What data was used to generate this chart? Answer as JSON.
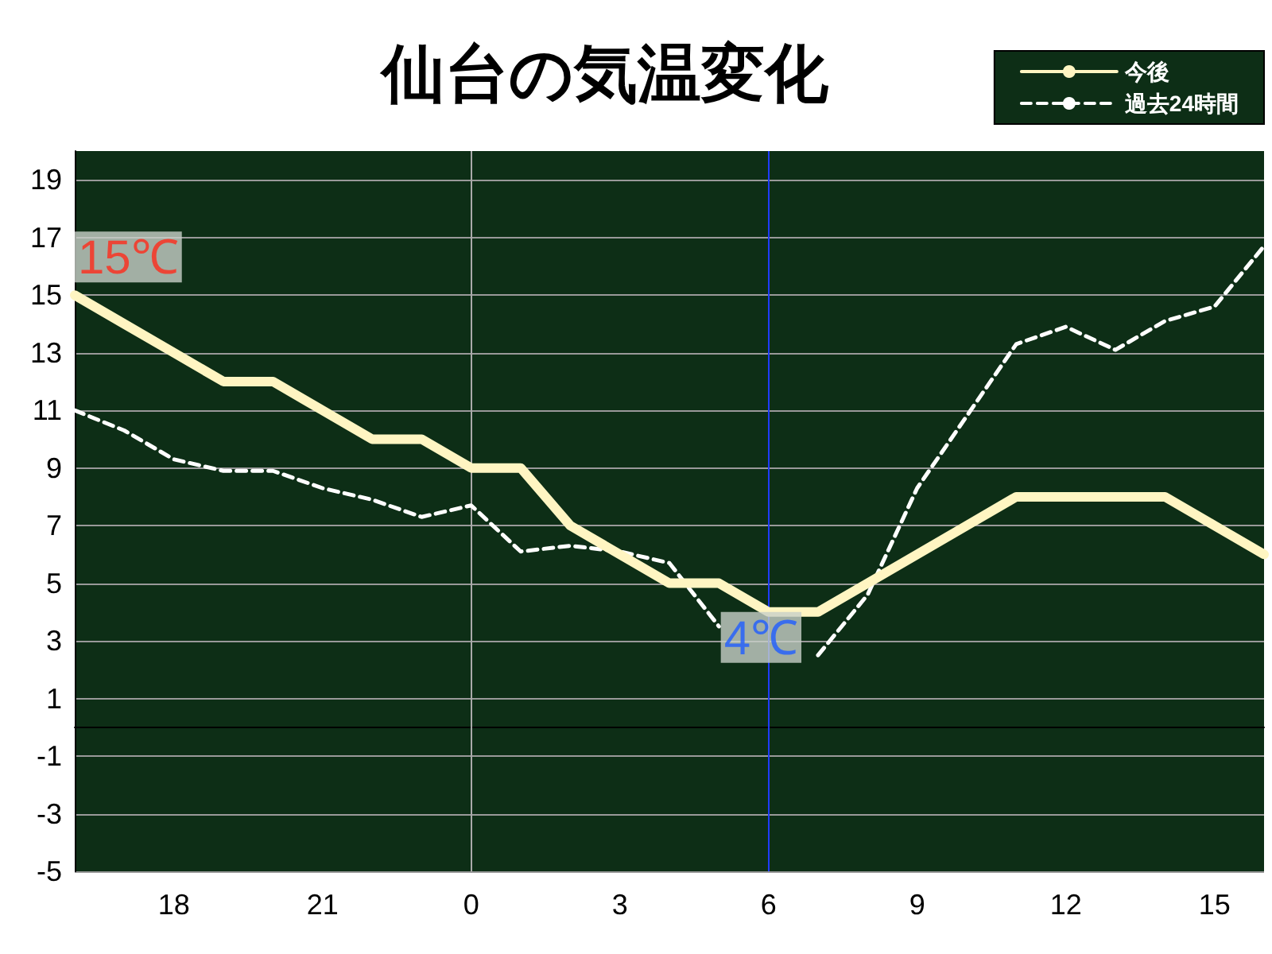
{
  "chart_data": {
    "type": "line",
    "title": "仙台の気温変化",
    "legend": "top right",
    "grid": "y",
    "marker": "none",
    "categories": [
      null,
      null,
      "18",
      null,
      null,
      "21",
      null,
      null,
      "0",
      null,
      null,
      "3",
      null,
      null,
      "6",
      null,
      null,
      "9",
      null,
      null,
      "12",
      null,
      null,
      "15",
      null
    ],
    "ylim": [
      -5,
      20
    ],
    "yticks": [
      -5,
      -3,
      -1,
      1,
      3,
      5,
      7,
      9,
      11,
      13,
      15,
      17,
      19
    ],
    "series": [
      {
        "name": "今後",
        "color": "#fff5c2",
        "line_style": "solid",
        "values": [
          15,
          14,
          13,
          12,
          12,
          11,
          10,
          10,
          9,
          9,
          7,
          6,
          5,
          5,
          4,
          4,
          5,
          6,
          7,
          8,
          8,
          8,
          8,
          7,
          6
        ]
      },
      {
        "name": "過去24時間",
        "color": "#ffffff",
        "line_style": "dashed",
        "values": [
          11,
          10.3,
          9.3,
          8.9,
          8.9,
          8.3,
          7.9,
          7.3,
          7.7,
          6.1,
          6.3,
          6.1,
          5.7,
          3.5,
          null,
          2.5,
          4.6,
          8.3,
          10.8,
          13.3,
          13.9,
          13.1,
          14.1,
          14.6,
          16.7
        ]
      }
    ],
    "ref_lines": [
      {
        "axis": "x",
        "value": "0",
        "color": "#aaaaaa"
      },
      {
        "axis": "x",
        "value": "6",
        "color": "#1f3cff"
      }
    ],
    "annotations": [
      "15℃",
      {
        "text": "4℃",
        "x": "6",
        "y": 4
      }
    ]
  }
}
